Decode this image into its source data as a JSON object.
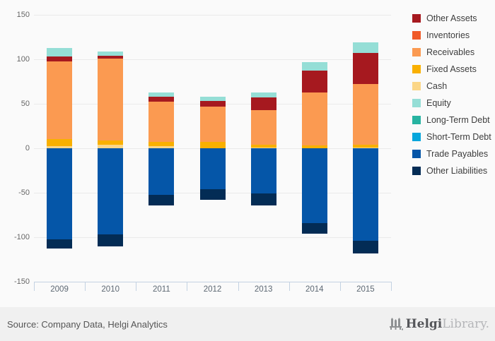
{
  "chart_data": {
    "type": "bar",
    "stacked": true,
    "title": "",
    "xlabel": "",
    "ylabel": "",
    "categories": [
      "2009",
      "2010",
      "2011",
      "2012",
      "2013",
      "2014",
      "2015"
    ],
    "series": [
      {
        "name": "Other Assets",
        "color": "#a6191f",
        "values": [
          5,
          3,
          6,
          6,
          14,
          24,
          35
        ]
      },
      {
        "name": "Inventories",
        "color": "#f05a28",
        "values": [
          0,
          0,
          0,
          0,
          0,
          0,
          0
        ]
      },
      {
        "name": "Receivables",
        "color": "#fb9a51",
        "values": [
          88,
          92,
          45,
          40,
          39,
          60,
          68
        ]
      },
      {
        "name": "Fixed Assets",
        "color": "#f9b000",
        "values": [
          8,
          5,
          5,
          7,
          3,
          3,
          3
        ]
      },
      {
        "name": "Cash",
        "color": "#fbd687",
        "values": [
          2,
          4,
          2,
          0,
          1,
          0,
          1
        ]
      },
      {
        "name": "Equity",
        "color": "#95ded6",
        "values": [
          10,
          5,
          5,
          5,
          6,
          10,
          12
        ]
      },
      {
        "name": "Long-Term Debt",
        "color": "#27b3a1",
        "values": [
          0,
          0,
          0,
          0,
          0,
          0,
          0
        ]
      },
      {
        "name": "Short-Term Debt",
        "color": "#05a6dc",
        "values": [
          0,
          0,
          0,
          0,
          0,
          0,
          0
        ]
      },
      {
        "name": "Trade Payables",
        "color": "#0556a8",
        "values": [
          -102,
          -97,
          -52,
          -46,
          -51,
          -84,
          -104
        ]
      },
      {
        "name": "Other Liabilities",
        "color": "#032c55",
        "values": [
          -11,
          -13,
          -12,
          -12,
          -13,
          -12,
          -14
        ]
      }
    ],
    "stack_order_positive_bottom_to_top": [
      "Cash",
      "Fixed Assets",
      "Receivables",
      "Inventories",
      "Other Assets",
      "Equity"
    ],
    "stack_order_negative_top_to_bottom": [
      "Short-Term Debt",
      "Long-Term Debt",
      "Trade Payables",
      "Other Liabilities"
    ],
    "yticks": [
      150,
      100,
      50,
      0,
      -50,
      -100,
      -150
    ],
    "ylim": [
      -150,
      150
    ],
    "grid": true,
    "legend_position": "right"
  },
  "footer": {
    "source_text": "Source: Company Data, Helgi Analytics",
    "logo_helgi": "Helgi",
    "logo_library": "Library."
  },
  "colors": {
    "background": "#fafafa",
    "footer_background": "#f0f0f0",
    "gridline": "#eaeaea",
    "axis": "#c3d2e2",
    "tick_label": "#666666"
  }
}
